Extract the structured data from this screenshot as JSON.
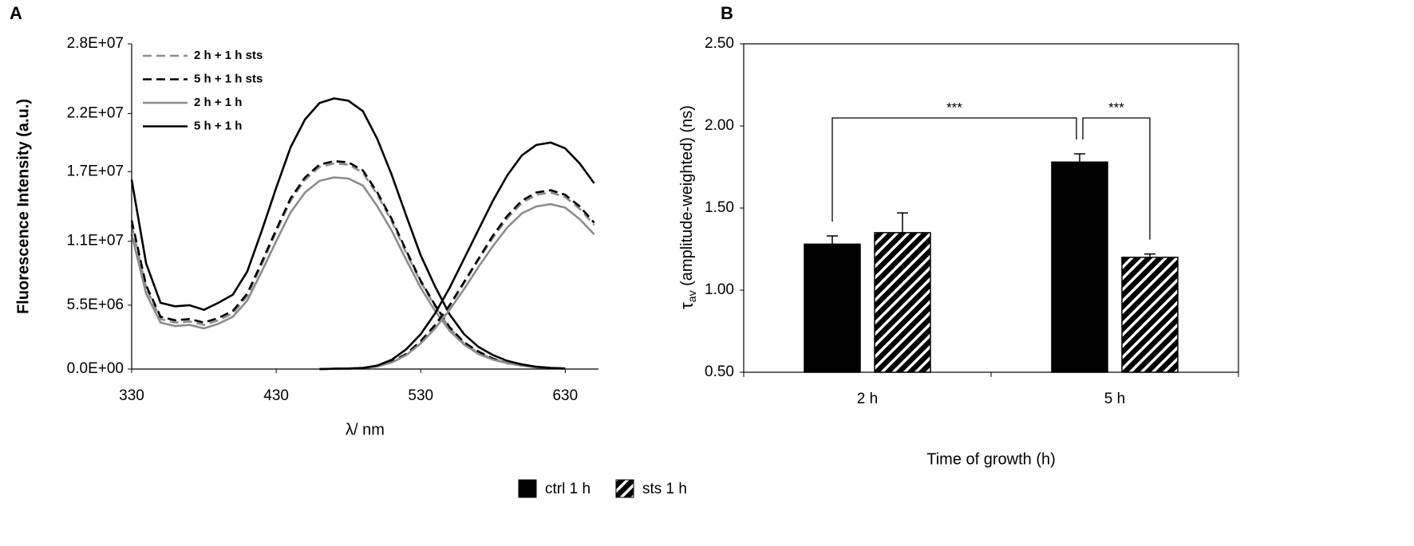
{
  "chart_data": [
    {
      "type": "line",
      "label": "A",
      "xlabel": "λ/ nm",
      "ylabel": "Fluorescence Intensity (a.u.)",
      "xlim": [
        330,
        653
      ],
      "xticks": [
        330,
        430,
        530,
        630
      ],
      "ylim": [
        0,
        28000000
      ],
      "yticks": [
        {
          "value": 0,
          "label": "0.0E+00"
        },
        {
          "value": 5500000,
          "label": "5.5E+06"
        },
        {
          "value": 11000000,
          "label": "1.1E+07"
        },
        {
          "value": 17000000,
          "label": "1.7E+07"
        },
        {
          "value": 22000000,
          "label": "2.2E+07"
        },
        {
          "value": 28000000,
          "label": "2.8E+07"
        }
      ],
      "legend": "upper left",
      "x": [
        330,
        340,
        350,
        360,
        370,
        380,
        390,
        400,
        410,
        420,
        430,
        440,
        450,
        460,
        470,
        480,
        490,
        500,
        510,
        520,
        530,
        540,
        550,
        560,
        570,
        580,
        590,
        600,
        610,
        620,
        630,
        640,
        650
      ],
      "series": [
        {
          "name": "2 h + 1 h sts",
          "color": "#8c8c8c",
          "dash": true,
          "values": [
            12400000.0,
            7000000.0,
            4300000.0,
            4000000.0,
            4100000.0,
            3800000.0,
            4200000.0,
            4800000.0,
            6300000.0,
            9000000.0,
            11800000.0,
            14500000.0,
            16300000.0,
            17400000.0,
            17700000.0,
            17600000.0,
            16900000.0,
            15000000.0,
            12700000.0,
            10000000.0,
            7500000.0,
            5400000.0,
            3500000.0,
            2200000.0,
            1400000.0,
            900000.0,
            500000.0,
            300000.0,
            150000.0,
            80000.0,
            40000.0,
            null,
            null
          ]
        },
        {
          "name": "5 h + 1 h sts",
          "color": "#000000",
          "dash": true,
          "values": [
            12800000.0,
            7200000.0,
            4500000.0,
            4200000.0,
            4300000.0,
            4000000.0,
            4400000.0,
            5000000.0,
            6500000.0,
            9200000.0,
            12000000.0,
            14700000.0,
            16500000.0,
            17600000.0,
            17900000.0,
            17800000.0,
            17100000.0,
            15200000.0,
            12900000.0,
            10200000.0,
            7600000.0,
            5500000.0,
            3600000.0,
            2300000.0,
            1500000.0,
            900000.0,
            500000.0,
            300000.0,
            150000.0,
            80000.0,
            40000.0,
            null,
            null
          ]
        },
        {
          "name": "2 h + 1 h",
          "color": "#8c8c8c",
          "dash": false,
          "values": [
            11600000.0,
            6500000.0,
            4000000.0,
            3700000.0,
            3800000.0,
            3500000.0,
            3900000.0,
            4500000.0,
            5900000.0,
            8400000.0,
            11000000.0,
            13500000.0,
            15200000.0,
            16200000.0,
            16500000.0,
            16400000.0,
            15800000.0,
            14000000.0,
            11900000.0,
            9400000.0,
            7000000.0,
            5000000.0,
            3300000.0,
            2100000.0,
            1300000.0,
            800000.0,
            500000.0,
            300000.0,
            140000.0,
            70000.0,
            30000.0,
            null,
            null
          ]
        },
        {
          "name": "5 h + 1 h",
          "color": "#000000",
          "dash": false,
          "values": [
            16300000.0,
            9100000.0,
            5700000.0,
            5400000.0,
            5500000.0,
            5100000.0,
            5700000.0,
            6400000.0,
            8400000.0,
            11900000.0,
            15600000.0,
            19100000.0,
            21500000.0,
            22900000.0,
            23300000.0,
            23100000.0,
            22200000.0,
            19800000.0,
            16700000.0,
            13200000.0,
            9800000.0,
            7100000.0,
            4700000.0,
            3000000.0,
            1900000.0,
            1200000.0,
            700000.0,
            400000.0,
            200000.0,
            100000.0,
            50000.0,
            null,
            null
          ]
        },
        {
          "color": "#8c8c8c",
          "dash": true,
          "values": [
            null,
            null,
            null,
            null,
            null,
            null,
            null,
            null,
            null,
            null,
            null,
            null,
            null,
            0,
            20000.0,
            40000.0,
            80000.0,
            230000.0,
            600000.0,
            1300000.0,
            2300000.0,
            3700000.0,
            5400000.0,
            7400000.0,
            9400000.0,
            11300000.0,
            13000000.0,
            14300000.0,
            15000000.0,
            15200000.0,
            14800000.0,
            13800000.0,
            12400000.0
          ]
        },
        {
          "color": "#000000",
          "dash": true,
          "values": [
            null,
            null,
            null,
            null,
            null,
            null,
            null,
            null,
            null,
            null,
            null,
            null,
            null,
            0,
            20000.0,
            40000.0,
            80000.0,
            240000.0,
            630000.0,
            1300000.0,
            2400000.0,
            3800000.0,
            5500000.0,
            7500000.0,
            9500000.0,
            11500000.0,
            13200000.0,
            14500000.0,
            15200000.0,
            15400000.0,
            15000000.0,
            14000000.0,
            12600000.0
          ]
        },
        {
          "color": "#8c8c8c",
          "dash": false,
          "values": [
            null,
            null,
            null,
            null,
            null,
            null,
            null,
            null,
            null,
            null,
            null,
            null,
            null,
            0,
            20000.0,
            40000.0,
            70000.0,
            220000.0,
            560000.0,
            1200000.0,
            2200000.0,
            3500000.0,
            5100000.0,
            6900000.0,
            8800000.0,
            10600000.0,
            12200000.0,
            13400000.0,
            14000000.0,
            14200000.0,
            13900000.0,
            12900000.0,
            11600000.0
          ]
        },
        {
          "color": "#000000",
          "dash": false,
          "values": [
            null,
            null,
            null,
            null,
            null,
            null,
            null,
            null,
            null,
            null,
            null,
            null,
            null,
            0,
            30000.0,
            50000.0,
            100000.0,
            300000.0,
            800000.0,
            1700000.0,
            3000000.0,
            4800000.0,
            7000000.0,
            9500000.0,
            12000000.0,
            14500000.0,
            16700000.0,
            18400000.0,
            19300000.0,
            19500000.0,
            19000000.0,
            17700000.0,
            16000000.0
          ]
        }
      ]
    },
    {
      "type": "bar",
      "label": "B",
      "xlabel": "Time of growth (h)",
      "ylabel": {
        "symbol": "τ",
        "subscript": "av",
        "text": " (amplitude-weighted) (ns)"
      },
      "categories": [
        "2 h",
        "5 h"
      ],
      "ylim": [
        0.5,
        2.5
      ],
      "yticks": [
        {
          "value": 0.5,
          "label": "0.50"
        },
        {
          "value": 1.0,
          "label": "1.00"
        },
        {
          "value": 1.5,
          "label": "1.50"
        },
        {
          "value": 2.0,
          "label": "2.00"
        },
        {
          "value": 2.5,
          "label": "2.50"
        }
      ],
      "legend": "bottom",
      "series": [
        {
          "name": "ctrl 1 h",
          "color": "#000000",
          "hatch": false,
          "values": [
            1.28,
            1.78
          ],
          "errors": [
            0.05,
            0.05
          ]
        },
        {
          "name": "sts 1 h",
          "color": "#000000",
          "hatch": true,
          "values": [
            1.35,
            1.2
          ],
          "errors": [
            0.12,
            0.02
          ]
        }
      ],
      "annotations": [
        "***",
        "***"
      ]
    }
  ]
}
